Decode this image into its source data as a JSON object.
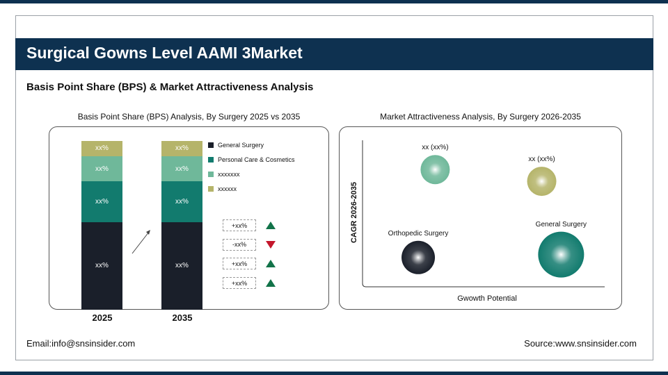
{
  "header": {
    "title": "Surgical Gowns Level AAMI 3Market",
    "subtitle": "Basis Point Share (BPS) & Market Attractiveness Analysis"
  },
  "colors": {
    "navy": "#0e3150",
    "general_surgery": "#1a1f2a",
    "personal_care": "#127b6e",
    "segment3": "#6fb89a",
    "segment4": "#b5b46a",
    "up": "#127349",
    "down": "#c4172c"
  },
  "chart_data": [
    {
      "type": "bar",
      "stacked": true,
      "title": "Basis Point Share (BPS) Analysis, By Surgery 2025 vs 2035",
      "categories": [
        "2025",
        "2035"
      ],
      "series": [
        {
          "name": "General Surgery",
          "values": [
            52,
            52
          ],
          "labels": [
            "xx%",
            "xx%"
          ],
          "color": "#1a1f2a"
        },
        {
          "name": "Personal Care & Cosmetics",
          "values": [
            24,
            24
          ],
          "labels": [
            "xx%",
            "xx%"
          ],
          "color": "#127b6e"
        },
        {
          "name": "xxxxxxx",
          "values": [
            15,
            15
          ],
          "labels": [
            "xx%",
            "xx%"
          ],
          "color": "#6fb89a"
        },
        {
          "name": "xxxxxx",
          "values": [
            9,
            9
          ],
          "labels": [
            "xx%",
            "xx%"
          ],
          "color": "#b5b46a"
        }
      ],
      "changes": [
        {
          "label": "+xx%",
          "direction": "up"
        },
        {
          "label": "-xx%",
          "direction": "down"
        },
        {
          "label": "+xx%",
          "direction": "up"
        },
        {
          "label": "+xx%",
          "direction": "up"
        }
      ]
    },
    {
      "type": "scatter",
      "bubble": true,
      "title": "Market Attractiveness Analysis, By Surgery 2026-2035",
      "xlabel": "Gwowth Potential",
      "ylabel": "CAGR 2026-2035",
      "grid": false,
      "points": [
        {
          "label": "xx (xx%)",
          "x": 0.3,
          "y": 0.8,
          "size": 21,
          "color": "#6fb89a"
        },
        {
          "label": "xx (xx%)",
          "x": 0.74,
          "y": 0.72,
          "size": 21,
          "color": "#b5b46a"
        },
        {
          "label": "Orthopedic Surgery",
          "x": 0.23,
          "y": 0.2,
          "size": 24,
          "color": "#1a1f2a"
        },
        {
          "label": "General Surgery",
          "x": 0.82,
          "y": 0.22,
          "size": 33,
          "color": "#127b6e"
        }
      ]
    }
  ],
  "footer": {
    "email": "Email:info@snsinsider.com",
    "source": "Source:www.snsinsider.com"
  }
}
